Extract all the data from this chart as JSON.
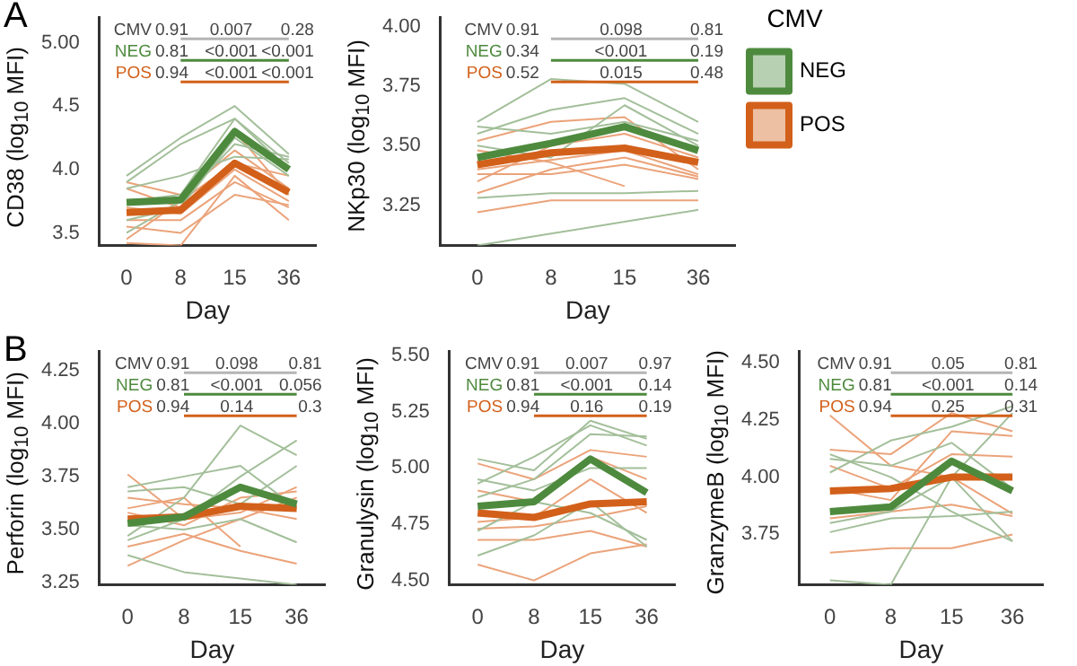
{
  "chart_data": [
    {
      "type": "line",
      "title": "A",
      "xlabel": "Day",
      "ylabel": "CD38 (log$_{10}$ MFI)",
      "categories": [
        "0",
        "8",
        "15",
        "36"
      ],
      "ylim": [
        3.4,
        5.2
      ],
      "yticks": [
        {
          "value": 3.5,
          "label": "3.5"
        },
        {
          "value": 4,
          "label": "4.0"
        },
        {
          "value": 4.5,
          "label": "4.5"
        },
        {
          "value": 5,
          "label": "5.00"
        }
      ],
      "annotations": [
        "CMV",
        "0.91",
        "0.007",
        "0.28",
        "NEG",
        "0.81",
        "<0.001",
        "<0.001",
        "POS",
        "0.94",
        "<0.001",
        "<0.001"
      ],
      "series": [
        {
          "color": "#4e8a3e",
          "values": [
            3.74,
            3.76,
            4.3,
            4.0
          ]
        },
        {
          "color": "#d2601a",
          "values": [
            3.66,
            3.68,
            4.05,
            3.82
          ]
        },
        {
          "color": "#a3bf9a",
          "values": [
            3.95,
            4.25,
            4.5,
            4.12
          ]
        },
        {
          "color": "#a3bf9a",
          "values": [
            3.9,
            4.2,
            4.4,
            4.05
          ]
        },
        {
          "color": "#a3bf9a",
          "values": [
            3.75,
            3.8,
            4.4,
            4.0
          ]
        },
        {
          "color": "#a3bf9a",
          "values": [
            3.6,
            3.7,
            4.25,
            3.95
          ]
        },
        {
          "color": "#a3bf9a",
          "values": [
            3.5,
            3.75,
            4.2,
            4.1
          ]
        },
        {
          "color": "#a3bf9a",
          "values": [
            3.85,
            3.95,
            4.1,
            4.08
          ]
        },
        {
          "color": "#eba37a",
          "values": [
            3.85,
            3.7,
            4.3,
            3.8
          ]
        },
        {
          "color": "#eba37a",
          "values": [
            3.7,
            3.65,
            4.0,
            3.75
          ]
        },
        {
          "color": "#eba37a",
          "values": [
            3.6,
            3.6,
            3.9,
            3.7
          ]
        },
        {
          "color": "#eba37a",
          "values": [
            3.45,
            3.75,
            4.05,
            3.95
          ]
        },
        {
          "color": "#eba37a",
          "values": [
            3.42,
            3.4,
            3.95,
            3.6
          ]
        },
        {
          "color": "#eba37a",
          "values": [
            3.9,
            3.8,
            4.15,
            3.85
          ]
        },
        {
          "color": "#eba37a",
          "values": [
            3.55,
            3.5,
            3.8,
            3.72
          ]
        }
      ]
    },
    {
      "type": "line",
      "xlabel": "Day",
      "ylabel": "NKp30 (log$_{10}$ MFI)",
      "categories": [
        "0",
        "8",
        "15",
        "36"
      ],
      "ylim": [
        3.08,
        4.04
      ],
      "yticks": [
        {
          "value": 3.25,
          "label": "3.25"
        },
        {
          "value": 3.5,
          "label": "3.50"
        },
        {
          "value": 3.75,
          "label": "3.75"
        },
        {
          "value": 4,
          "label": "4.00"
        }
      ],
      "legend": "right",
      "legend_title": "CMV",
      "annotations": [
        "CMV",
        "0.91",
        "0.098",
        "0.81",
        "NEG",
        "0.34",
        "<0.001",
        "0.19",
        "POS",
        "0.52",
        "0.015",
        "0.48"
      ],
      "series": [
        {
          "name": "NEG",
          "color": "#4e8a3e",
          "values": [
            3.45,
            3.51,
            3.58,
            3.48
          ]
        },
        {
          "name": "POS",
          "color": "#d2601a",
          "values": [
            3.42,
            3.47,
            3.49,
            3.43
          ]
        },
        {
          "color": "#a3bf9a",
          "values": [
            3.6,
            3.78,
            3.76,
            3.6
          ]
        },
        {
          "color": "#a3bf9a",
          "values": [
            3.55,
            3.65,
            3.7,
            3.55
          ]
        },
        {
          "color": "#a3bf9a",
          "values": [
            3.08,
            3.13,
            3.18,
            3.23
          ]
        },
        {
          "color": "#a3bf9a",
          "values": [
            3.5,
            3.45,
            3.67,
            3.5
          ]
        },
        {
          "color": "#a3bf9a",
          "values": [
            3.28,
            3.3,
            3.3,
            3.31
          ]
        },
        {
          "color": "#a3bf9a",
          "values": [
            3.58,
            3.55,
            3.6,
            3.52
          ]
        },
        {
          "color": "#eba37a",
          "values": [
            3.52,
            3.6,
            3.62,
            3.4
          ]
        },
        {
          "color": "#eba37a",
          "values": [
            3.4,
            3.44,
            3.48,
            3.38
          ]
        },
        {
          "color": "#eba37a",
          "values": [
            3.3,
            3.4,
            3.45,
            3.37
          ]
        },
        {
          "color": "#eba37a",
          "values": [
            3.22,
            3.27,
            3.27,
            3.27
          ]
        },
        {
          "color": "#eba37a",
          "values": [
            3.35,
            3.5,
            3.55,
            3.45
          ]
        },
        {
          "color": "#eba37a",
          "values": [
            3.48,
            3.43,
            3.33,
            null
          ]
        },
        {
          "color": "#eba37a",
          "values": [
            3.38,
            3.38,
            3.42,
            3.36
          ]
        }
      ]
    },
    {
      "type": "line",
      "title": "B",
      "xlabel": "Day",
      "ylabel": "Perforin (log$_{10}$ MFI)",
      "categories": [
        "0",
        "8",
        "15",
        "36"
      ],
      "ylim": [
        3.24,
        4.34
      ],
      "yticks": [
        {
          "value": 3.25,
          "label": "3.25"
        },
        {
          "value": 3.5,
          "label": "3.50"
        },
        {
          "value": 3.75,
          "label": "3.75"
        },
        {
          "value": 4,
          "label": "4.00"
        },
        {
          "value": 4.25,
          "label": "4.25"
        }
      ],
      "annotations": [
        "CMV",
        "0.91",
        "0.098",
        "0.81",
        "NEG",
        "0.81",
        "<0.001",
        "0.056",
        "POS",
        "0.94",
        "0.14",
        "0.3"
      ],
      "series": [
        {
          "color": "#4e8a3e",
          "values": [
            3.53,
            3.56,
            3.7,
            3.62
          ]
        },
        {
          "color": "#d2601a",
          "values": [
            3.55,
            3.56,
            3.61,
            3.6
          ]
        },
        {
          "color": "#a3bf9a",
          "values": [
            3.7,
            3.75,
            3.8,
            3.6
          ]
        },
        {
          "color": "#a3bf9a",
          "values": [
            3.47,
            3.65,
            3.99,
            3.85
          ]
        },
        {
          "color": "#a3bf9a",
          "values": [
            3.38,
            3.3,
            3.27,
            3.24
          ]
        },
        {
          "color": "#a3bf9a",
          "values": [
            3.45,
            3.55,
            3.75,
            3.92
          ]
        },
        {
          "color": "#a3bf9a",
          "values": [
            3.68,
            3.7,
            3.62,
            3.8
          ]
        },
        {
          "color": "#a3bf9a",
          "values": [
            3.52,
            3.5,
            3.55,
            3.44
          ]
        },
        {
          "color": "#eba37a",
          "values": [
            3.76,
            3.55,
            3.58,
            3.7
          ]
        },
        {
          "color": "#eba37a",
          "values": [
            3.65,
            3.62,
            3.6,
            3.55
          ]
        },
        {
          "color": "#eba37a",
          "values": [
            3.42,
            3.48,
            3.4,
            3.34
          ]
        },
        {
          "color": "#eba37a",
          "values": [
            3.58,
            3.52,
            3.65,
            3.68
          ]
        },
        {
          "color": "#eba37a",
          "values": [
            3.33,
            3.45,
            3.55,
            3.65
          ]
        },
        {
          "color": "#eba37a",
          "values": [
            3.6,
            3.65,
            3.42,
            null
          ]
        }
      ]
    },
    {
      "type": "line",
      "xlabel": "Day",
      "ylabel": "Granulysin (log$_{10}$ MFI)",
      "categories": [
        "0",
        "8",
        "15",
        "36"
      ],
      "ylim": [
        4.48,
        5.52
      ],
      "yticks": [
        {
          "value": 4.5,
          "label": "4.50"
        },
        {
          "value": 4.75,
          "label": "4.75"
        },
        {
          "value": 5,
          "label": "5.00"
        },
        {
          "value": 5.25,
          "label": "5.25"
        },
        {
          "value": 5.5,
          "label": "5.50"
        }
      ],
      "annotations": [
        "CMV",
        "0.91",
        "0.007",
        "0.97",
        "NEG",
        "0.81",
        "<0.001",
        "0.14",
        "POS",
        "0.94",
        "0.16",
        "0.19"
      ],
      "series": [
        {
          "color": "#4e8a3e",
          "values": [
            4.83,
            4.85,
            5.04,
            4.89
          ]
        },
        {
          "color": "#d2601a",
          "values": [
            4.8,
            4.78,
            4.84,
            4.85
          ]
        },
        {
          "color": "#a3bf9a",
          "values": [
            5.04,
            4.99,
            5.21,
            5.13
          ]
        },
        {
          "color": "#a3bf9a",
          "values": [
            4.93,
            5.05,
            5.19,
            5.1
          ]
        },
        {
          "color": "#a3bf9a",
          "values": [
            4.87,
            4.95,
            5.15,
            5.14
          ]
        },
        {
          "color": "#a3bf9a",
          "values": [
            4.61,
            4.7,
            4.85,
            4.65
          ]
        },
        {
          "color": "#a3bf9a",
          "values": [
            4.72,
            4.85,
            4.8,
            4.68
          ]
        },
        {
          "color": "#a3bf9a",
          "values": [
            4.95,
            4.9,
            5.0,
            5.0
          ]
        },
        {
          "color": "#eba37a",
          "values": [
            5.02,
            4.95,
            5.08,
            5.05
          ]
        },
        {
          "color": "#eba37a",
          "values": [
            4.57,
            4.5,
            4.62,
            4.66
          ]
        },
        {
          "color": "#eba37a",
          "values": [
            4.68,
            4.68,
            4.72,
            4.65
          ]
        },
        {
          "color": "#eba37a",
          "values": [
            4.76,
            4.78,
            4.95,
            4.8
          ]
        },
        {
          "color": "#eba37a",
          "values": [
            4.9,
            4.85,
            5.05,
            4.95
          ]
        },
        {
          "color": "#eba37a",
          "values": [
            4.73,
            4.74,
            4.78,
            4.83
          ]
        }
      ]
    },
    {
      "type": "line",
      "xlabel": "Day",
      "ylabel": "GranzymeB (log$_{10}$ MFI)",
      "categories": [
        "0",
        "8",
        "15",
        "36"
      ],
      "ylim": [
        3.53,
        4.55
      ],
      "yticks": [
        {
          "value": 3.75,
          "label": "3.75"
        },
        {
          "value": 4,
          "label": "4.00"
        },
        {
          "value": 4.25,
          "label": "4.25"
        },
        {
          "value": 4.5,
          "label": "4.50"
        }
      ],
      "annotations": [
        "CMV",
        "0.91",
        "0.05",
        "0.81",
        "NEG",
        "0.81",
        "<0.001",
        "0.14",
        "POS",
        "0.94",
        "0.25",
        "0.31"
      ],
      "series": [
        {
          "color": "#4e8a3e",
          "values": [
            3.85,
            3.87,
            4.07,
            3.94
          ]
        },
        {
          "color": "#d2601a",
          "values": [
            3.94,
            3.95,
            4.0,
            4.0
          ]
        },
        {
          "color": "#a3bf9a",
          "values": [
            3.55,
            3.53,
            4.0,
            3.72
          ]
        },
        {
          "color": "#a3bf9a",
          "values": [
            3.76,
            3.82,
            3.83,
            3.85
          ]
        },
        {
          "color": "#a3bf9a",
          "values": [
            4.02,
            4.16,
            4.22,
            4.31
          ]
        },
        {
          "color": "#a3bf9a",
          "values": [
            4.08,
            4.05,
            4.15,
            3.95
          ]
        },
        {
          "color": "#a3bf9a",
          "values": [
            3.8,
            3.85,
            4.0,
            4.28
          ]
        },
        {
          "color": "#a3bf9a",
          "values": [
            4.1,
            4.0,
            3.85,
            3.72
          ]
        },
        {
          "color": "#eba37a",
          "values": [
            4.27,
            4.05,
            4.0,
            3.84
          ]
        },
        {
          "color": "#eba37a",
          "values": [
            3.67,
            3.69,
            3.69,
            3.75
          ]
        },
        {
          "color": "#eba37a",
          "values": [
            4.12,
            4.1,
            4.28,
            4.2
          ]
        },
        {
          "color": "#eba37a",
          "values": [
            3.82,
            3.85,
            3.88,
            3.83
          ]
        },
        {
          "color": "#eba37a",
          "values": [
            4.05,
            3.95,
            4.1,
            4.09
          ]
        },
        {
          "color": "#eba37a",
          "values": [
            3.95,
            3.9,
            4.2,
            4.18
          ]
        }
      ]
    }
  ]
}
